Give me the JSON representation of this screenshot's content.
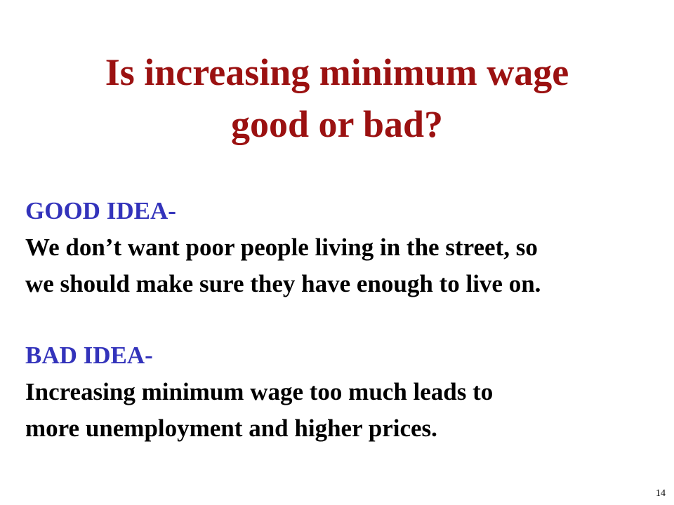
{
  "slide": {
    "title_lines": [
      "Is increasing minimum wage",
      "good or bad?"
    ],
    "good": {
      "heading": "GOOD IDEA-",
      "lines": [
        "We don’t want poor people living in the street, so",
        "we should make sure they have enough to live on."
      ]
    },
    "bad": {
      "heading": "BAD IDEA-",
      "lines": [
        "Increasing minimum wage too much leads to",
        "more unemployment and higher prices."
      ]
    },
    "page_number": "14"
  },
  "colors": {
    "title": "#9b1111",
    "heading": "#3333bb",
    "body": "#000000",
    "background": "#ffffff"
  }
}
